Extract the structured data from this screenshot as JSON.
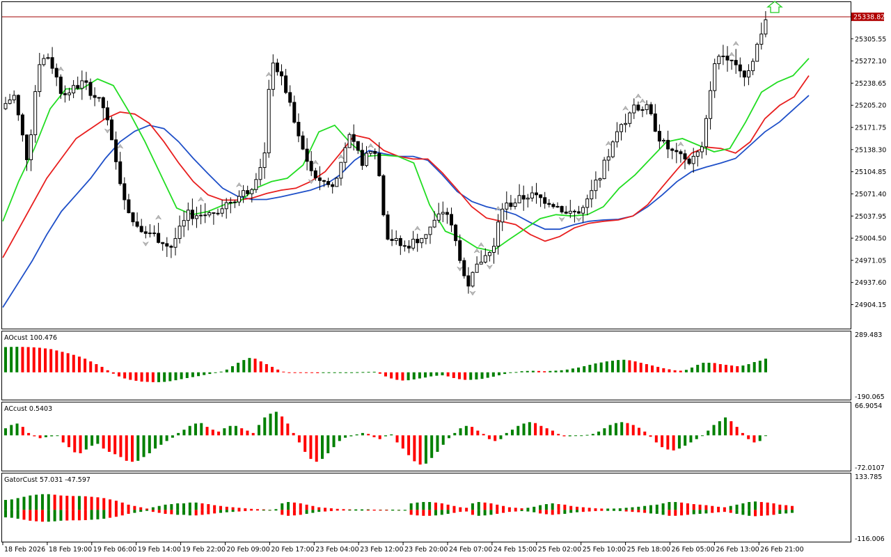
{
  "chart_data": [
    {
      "type": "candlestick",
      "name": "",
      "ylim": [
        24870,
        25360
      ],
      "y_ticks": [
        "25305.55",
        "25272.10",
        "25238.65",
        "25205.20",
        "25171.75",
        "25138.30",
        "25104.85",
        "25071.40",
        "25037.95",
        "25004.50",
        "24971.05",
        "24937.60",
        "24904.15"
      ],
      "y_tick_values": [
        25305.55,
        25272.1,
        25238.65,
        25205.2,
        25171.75,
        25138.3,
        25104.85,
        25071.4,
        25037.95,
        25004.5,
        24971.05,
        24937.6,
        24904.15
      ],
      "current_price": "25338.82",
      "current_price_value": 25338.82,
      "x_labels": [
        "18 Feb 2026",
        "18 Feb 19:00",
        "19 Feb 06:00",
        "19 Feb 14:00",
        "19 Feb 22:00",
        "20 Feb 09:00",
        "20 Feb 17:00",
        "23 Feb 04:00",
        "23 Feb 12:00",
        "23 Feb 20:00",
        "24 Feb 07:00",
        "24 Feb 15:00",
        "25 Feb 02:00",
        "25 Feb 10:00",
        "25 Feb 18:00",
        "26 Feb 05:00",
        "26 Feb 13:00",
        "26 Feb 21:00"
      ],
      "alligator_series": [
        {
          "color": "#1e4fc8",
          "values": [
            24900,
            24935,
            24970,
            25010,
            25045,
            25070,
            25095,
            25125,
            25150,
            25166,
            25175,
            25170,
            25150,
            25125,
            25102,
            25080,
            25068,
            25063,
            25063,
            25067,
            25072,
            25077,
            25085,
            25100,
            25122,
            25137,
            25132,
            25128,
            25128,
            25122,
            25100,
            25075,
            25060,
            25052,
            25047,
            25040,
            25028,
            25018,
            25018,
            25025,
            25030,
            25032,
            25033,
            25038,
            25052,
            25070,
            25090,
            25105,
            25112,
            25118,
            25125,
            25145,
            25165,
            25180,
            25200,
            25220
          ]
        },
        {
          "color": "#e81e1e",
          "values": [
            24975,
            25015,
            25055,
            25095,
            25125,
            25155,
            25170,
            25185,
            25195,
            25192,
            25178,
            25150,
            25118,
            25090,
            25070,
            25062,
            25062,
            25065,
            25072,
            25077,
            25080,
            25090,
            25105,
            25132,
            25160,
            25155,
            25137,
            25128,
            25124,
            25124,
            25103,
            25078,
            25052,
            25035,
            25030,
            25025,
            25010,
            25000,
            25007,
            25020,
            25027,
            25030,
            25032,
            25038,
            25055,
            25082,
            25108,
            25133,
            25142,
            25140,
            25133,
            25150,
            25185,
            25205,
            25218,
            25250
          ]
        },
        {
          "color": "#22dd22",
          "values": [
            25030,
            25090,
            25140,
            25200,
            25230,
            25230,
            25245,
            25235,
            25195,
            25150,
            25100,
            25050,
            25040,
            25045,
            25055,
            25060,
            25080,
            25090,
            25095,
            25115,
            25165,
            25175,
            25148,
            25128,
            25130,
            25128,
            25118,
            25055,
            25015,
            25005,
            24990,
            24985,
            25002,
            25018,
            25034,
            25040,
            25038,
            25040,
            25052,
            25080,
            25100,
            25125,
            25150,
            25155,
            25145,
            25135,
            25140,
            25180,
            25225,
            25240,
            25250,
            25276
          ]
        }
      ]
    },
    {
      "type": "histogram",
      "name": "AOcust",
      "label": "AOcust 100.476",
      "y_max_label": "289.483",
      "y_min_label": "-190.065",
      "ylim": [
        -190.065,
        289.483
      ],
      "up_color": "#008000",
      "down_color": "#ff0000",
      "values": [
        185,
        186,
        187,
        186,
        185,
        183,
        180,
        175,
        170,
        160,
        150,
        140,
        128,
        115,
        100,
        80,
        60,
        40,
        15,
        -10,
        -30,
        -45,
        -55,
        -62,
        -68,
        -70,
        -72,
        -72,
        -70,
        -65,
        -58,
        -50,
        -42,
        -35,
        -28,
        -20,
        -12,
        -5,
        5,
        20,
        45,
        70,
        90,
        105,
        100,
        80,
        60,
        40,
        20,
        5,
        0,
        -2,
        -3,
        -4,
        -5,
        -6,
        -5,
        -4,
        -3,
        -2,
        -1,
        0,
        1,
        2,
        3,
        4,
        -10,
        -30,
        -45,
        -55,
        -60,
        -58,
        -52,
        -45,
        -38,
        -30,
        -25,
        -22,
        -30,
        -42,
        -50,
        -55,
        -55,
        -52,
        -48,
        -40,
        -32,
        -22,
        -12,
        -5,
        2,
        8,
        10,
        11,
        10,
        8,
        10,
        12,
        15,
        20,
        28,
        35,
        45,
        55,
        65,
        72,
        80,
        85,
        90,
        92,
        88,
        80,
        70,
        60,
        50,
        40,
        30,
        22,
        15,
        12,
        18,
        35,
        55,
        70,
        70,
        68,
        60,
        55,
        50,
        45,
        50,
        60,
        75,
        85,
        100
      ]
    },
    {
      "type": "histogram",
      "name": "ACcust",
      "label": "ACcust 0.5403",
      "y_max_label": "66.9054",
      "y_min_label": "-72.0107",
      "ylim": [
        -72.0107,
        66.9054
      ],
      "up_color": "#008000",
      "down_color": "#ff0000",
      "values": [
        15,
        22,
        25,
        18,
        5,
        -2,
        -6,
        -4,
        -2,
        -1,
        -15,
        -25,
        -36,
        -38,
        -30,
        -22,
        -18,
        -28,
        -35,
        -40,
        -46,
        -54,
        -56,
        -54,
        -46,
        -38,
        -28,
        -20,
        -12,
        -5,
        5,
        12,
        20,
        25,
        26,
        18,
        12,
        8,
        15,
        20,
        20,
        15,
        10,
        5,
        22,
        38,
        46,
        50,
        40,
        25,
        5,
        -15,
        -35,
        -50,
        -56,
        -50,
        -38,
        -25,
        -12,
        -5,
        -2,
        2,
        5,
        3,
        -4,
        -8,
        -2,
        2,
        -15,
        -28,
        -42,
        -55,
        -62,
        -60,
        -48,
        -35,
        -20,
        -6,
        5,
        15,
        20,
        18,
        10,
        3,
        -8,
        -12,
        -8,
        5,
        12,
        20,
        25,
        28,
        26,
        20,
        15,
        10,
        3,
        -2,
        -2,
        -1,
        0,
        1,
        3,
        8,
        15,
        22,
        26,
        28,
        26,
        22,
        16,
        8,
        -3,
        -15,
        -25,
        -30,
        -32,
        -28,
        -22,
        -15,
        -8,
        0,
        10,
        22,
        30,
        38,
        30,
        18,
        5,
        -8,
        -15,
        -12,
        0
      ]
    },
    {
      "type": "histogram",
      "name": "GatorCust",
      "label": "GatorCust 57.031 -47.597",
      "y_max_label": "133.785",
      "y_min_label": "-116.006",
      "ylim": [
        -116.006,
        133.785
      ],
      "up_color": "#008000",
      "down_color": "#ff0000",
      "upper": [
        38,
        40,
        45,
        50,
        55,
        58,
        60,
        60,
        58,
        55,
        54,
        53,
        53,
        52,
        50,
        48,
        45,
        40,
        35,
        28,
        20,
        15,
        10,
        5,
        10,
        15,
        20,
        22,
        25,
        25,
        28,
        28,
        25,
        22,
        18,
        15,
        12,
        10,
        8,
        6,
        4,
        3,
        2,
        0,
        3,
        25,
        30,
        28,
        25,
        20,
        15,
        10,
        8,
        6,
        4,
        3,
        2,
        2,
        2,
        2,
        1,
        1,
        1,
        1,
        0,
        0,
        25,
        28,
        30,
        30,
        28,
        25,
        20,
        15,
        10,
        8,
        25,
        30,
        28,
        25,
        20,
        15,
        10,
        8,
        6,
        8,
        12,
        18,
        22,
        25,
        22,
        20,
        15,
        12,
        10,
        8,
        6,
        5,
        5,
        5,
        6,
        8,
        10,
        12,
        15,
        18,
        20,
        25,
        30,
        30,
        28,
        25,
        22,
        20,
        18,
        15,
        12,
        10,
        15,
        20,
        25,
        30,
        32,
        30,
        28,
        25,
        20,
        18,
        15
      ]
    }
  ],
  "buy_arrow": "up-arrow-signal"
}
